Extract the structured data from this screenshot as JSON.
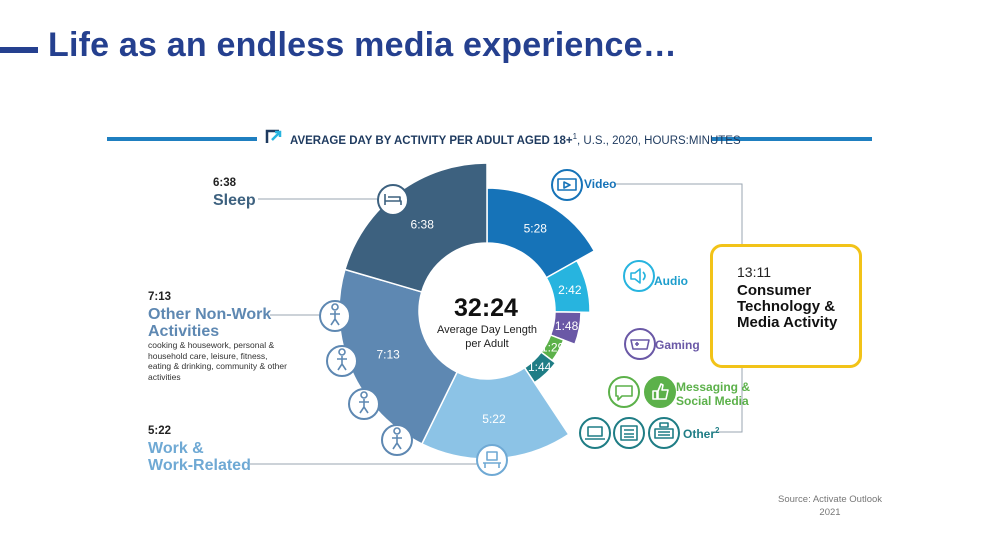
{
  "slide": {
    "title": "Life as an endless media experience…",
    "header_main": "AVERAGE DAY BY ACTIVITY PER ADULT AGED 18+",
    "header_sup": "1",
    "header_rest": ", U.S., 2020, HOURS:MINUTES",
    "source": "Source: Activate Outlook 2021"
  },
  "center": {
    "value": "32:24",
    "label": "Average Day Length per Adult"
  },
  "left_labels": {
    "sleep": {
      "time": "6:38",
      "name": "Sleep"
    },
    "other": {
      "time": "7:13",
      "name": "Other Non-Work Activities",
      "desc": "cooking & housework, personal & household care, leisure, fitness, eating & drinking, community & other activities"
    },
    "work": {
      "time": "5:22",
      "name": "Work & Work-Related"
    }
  },
  "right_labels": {
    "video": "Video",
    "audio": "Audio",
    "gaming": "Gaming",
    "messaging": "Messaging & Social Media",
    "other": "Other",
    "other_sup": "2"
  },
  "consumer_box": {
    "time": "13:11",
    "label": "Consumer Technology & Media Activity"
  },
  "chart_data": {
    "type": "pie",
    "title": "AVERAGE DAY BY ACTIVITY PER ADULT AGED 18+1, U.S., 2020, HOURS:MINUTES",
    "total_label": "32:24",
    "slices": [
      {
        "name": "Video",
        "label": "5:28",
        "minutes": 328,
        "color": "#1673b8"
      },
      {
        "name": "Audio",
        "label": "2:42",
        "minutes": 162,
        "color": "#27b4df"
      },
      {
        "name": "Gaming",
        "label": "1:48",
        "minutes": 108,
        "color": "#6a58a6"
      },
      {
        "name": "Messaging & Social Media",
        "label": "1:29",
        "minutes": 89,
        "color": "#5cb14a"
      },
      {
        "name": "Other",
        "label": "1:44",
        "minutes": 104,
        "color": "#1f7d85"
      },
      {
        "name": "Work & Work-Related",
        "label": "5:22",
        "minutes": 322,
        "color": "#8cc3e6"
      },
      {
        "name": "Other Non-Work Activities",
        "label": "7:13",
        "minutes": 433,
        "color": "#5e88b2"
      },
      {
        "name": "Sleep",
        "label": "6:38",
        "minutes": 398,
        "color": "#3d617f"
      }
    ]
  }
}
